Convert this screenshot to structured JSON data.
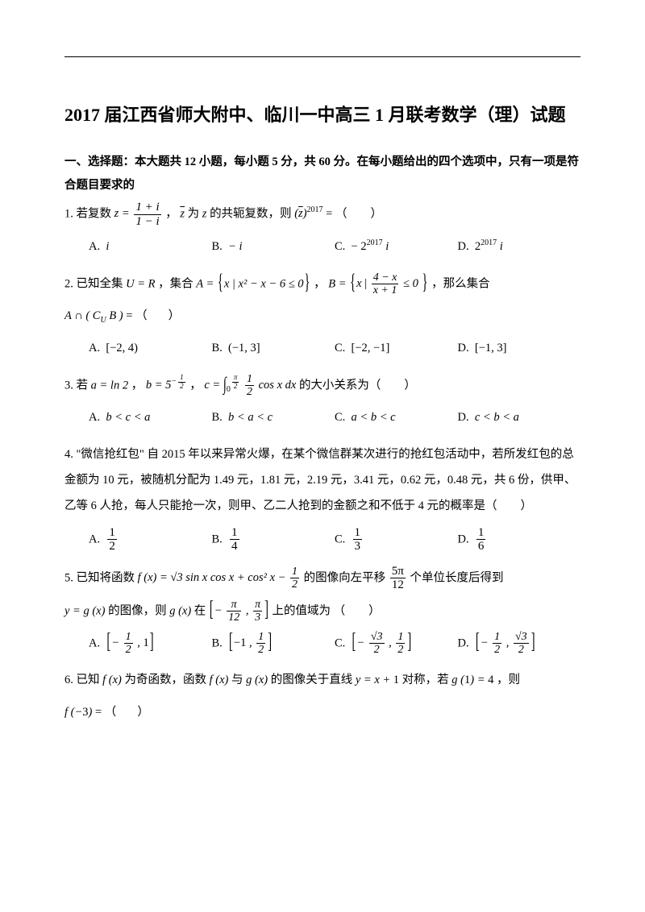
{
  "title": "2017 届江西省师大附中、临川一中高三 1 月联考数学（理）试题",
  "section_header": "一、选择题：本大题共 12 小题，每小题 5 分，共 60 分。在每小题给出的四个选项中，只有一项是符合题目要求的",
  "q1": {
    "prefix": "1. 若复数 ",
    "mid1": " 为 ",
    "mid2": " 的共轭复数，则",
    "tail": " = （　　）",
    "z_label": "z",
    "zbar_label": "z",
    "frac_num": "1 + i",
    "frac_den": "1 − i",
    "exp": "2017",
    "optA": "i",
    "optB": "− i",
    "optC_pre": "− 2",
    "optC_exp": "2017",
    "optC_tail": "i",
    "optD_pre": "2",
    "optD_exp": "2017",
    "optD_tail": "i"
  },
  "q2": {
    "line1_pre": "2. 已知全集 ",
    "U": "U = R",
    "mid1": "，集合 ",
    "A_set_pre": "A = ",
    "A_set_body": "x | x² − x − 6 ≤ 0",
    "mid2": "，",
    "B_set_pre": "B = ",
    "B_frac_num": "4 − x",
    "B_frac_den": "x + 1",
    "B_set_tail": " ≤ 0",
    "tail1": "，那么集合",
    "line2": "A ∩ ( C_U B ) = （　　）",
    "optA": "[−2, 4)",
    "optB": "(−1, 3]",
    "optC": "[−2, −1]",
    "optD": "[−1, 3]"
  },
  "q3": {
    "pre": "3. 若 ",
    "a_eq": "a = ln 2",
    "sep1": "，",
    "b_pre": "b = 5",
    "b_exp_num": "1",
    "b_exp_den": "2",
    "sep2": "，",
    "c_pre": "c = ",
    "int_up": "π",
    "int_dn": "0",
    "c_frac_num": "1",
    "c_frac_den": "2",
    "c_tail": " cos x dx",
    "tail": " 的大小关系为（　　）",
    "optA": "b < c < a",
    "optB": "b < a < c",
    "optC": "a < b < c",
    "optD": "c < b < a"
  },
  "q4": {
    "body": "4. \"微信抢红包\" 自 2015 年以来异常火爆，在某个微信群某次进行的抢红包活动中，若所发红包的总金额为 10 元，被随机分配为 1.49 元，1.81 元，2.19 元，3.41 元，0.62 元，0.48 元，共 6 份，供甲、乙等 6 人抢，每人只能抢一次，则甲、乙二人抢到的金额之和不低于 4 元的概率是（　　）",
    "optA_num": "1",
    "optA_den": "2",
    "optB_num": "1",
    "optB_den": "4",
    "optC_num": "1",
    "optC_den": "3",
    "optD_num": "1",
    "optD_den": "6"
  },
  "q5": {
    "line1_pre": "5. 已知将函数 ",
    "fx": "f (x) = √3 sin x cos x + cos² x − ",
    "half_num": "1",
    "half_den": "2",
    "mid1": " 的图像向左平移 ",
    "shift_num": "5π",
    "shift_den": "12",
    "tail1": " 个单位长度后得到",
    "line2_pre": "y = g (x) 的图像，则 g (x) 在 ",
    "interval_a_num": "π",
    "interval_a_den": "12",
    "interval_b_num": "π",
    "interval_b_den": "3",
    "tail2": " 上的值域为 （　　）",
    "optA_a_num": "1",
    "optA_a_den": "2",
    "optA_b": "1",
    "optB_a": "−1",
    "optB_b_num": "1",
    "optB_b_den": "2",
    "optC_a_num": "√3",
    "optC_a_den": "2",
    "optC_b_num": "1",
    "optC_b_den": "2",
    "optD_a_num": "1",
    "optD_a_den": "2",
    "optD_b_num": "√3",
    "optD_b_den": "2"
  },
  "q6": {
    "line1": "6. 已知 f (x) 为奇函数，函数 f (x) 与 g (x) 的图像关于直线 y = x + 1 对称，若 g (1) = 4 ，则",
    "line2": "f (−3) = （　　）"
  },
  "labels": {
    "A": "A.",
    "B": "B.",
    "C": "C.",
    "D": "D."
  }
}
